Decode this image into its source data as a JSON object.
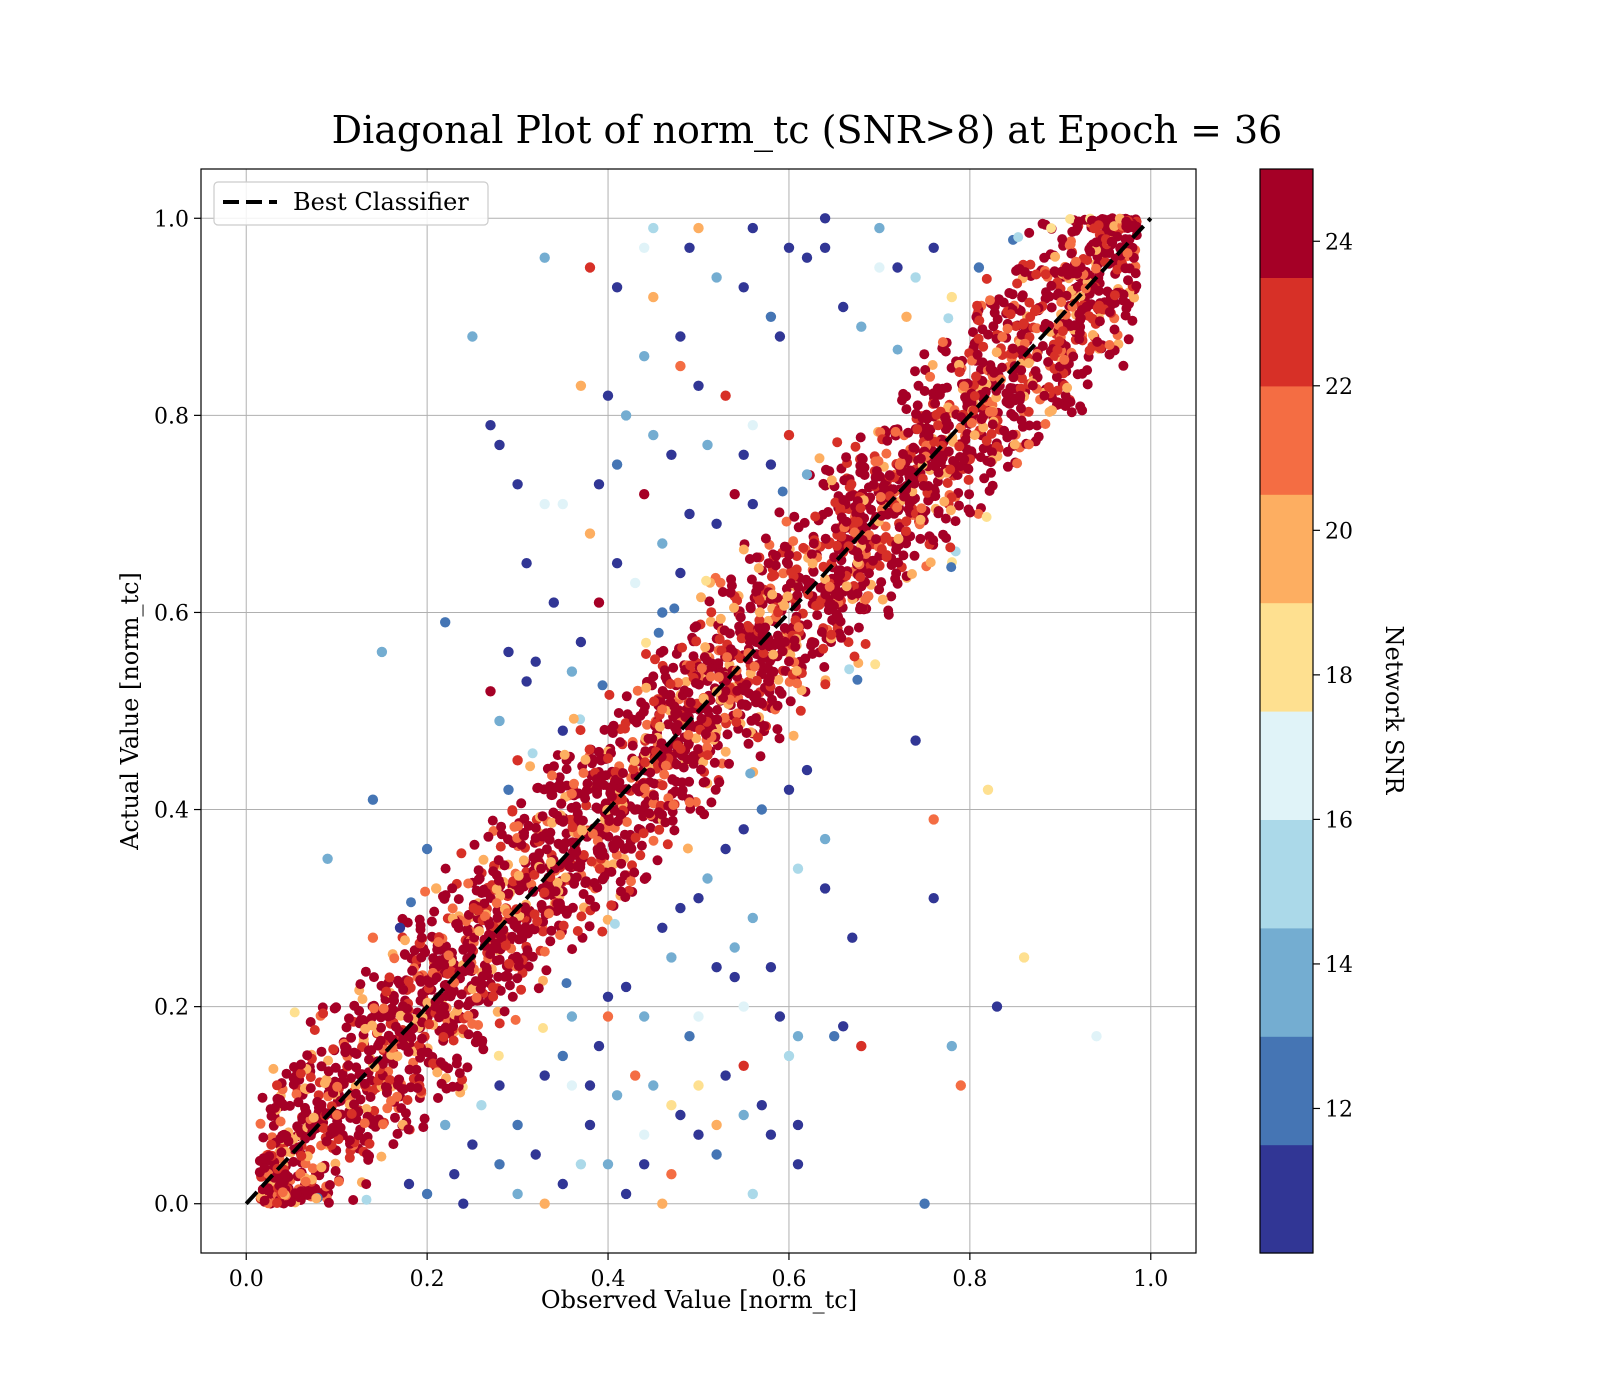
{
  "chart_data": {
    "type": "scatter",
    "title": "Diagonal Plot of norm_tc (SNR>8) at Epoch = 36",
    "xlabel": "Observed Value [norm_tc]",
    "ylabel": "Actual Value [norm_tc]",
    "xlim": [
      -0.05,
      1.05
    ],
    "ylim": [
      -0.05,
      1.05
    ],
    "x_ticks": [
      "0.0",
      "0.2",
      "0.4",
      "0.6",
      "0.8",
      "1.0"
    ],
    "y_ticks": [
      "0.0",
      "0.2",
      "0.4",
      "0.6",
      "0.8",
      "1.0"
    ],
    "grid": true,
    "legend": {
      "placement": "top-left",
      "entries": [
        {
          "label": "Best Classifier",
          "style": "black dashed line"
        }
      ]
    },
    "reference_line": {
      "label": "Best Classifier",
      "x": [
        0.0,
        1.0
      ],
      "y": [
        0.0,
        1.0
      ],
      "color": "#000000"
    },
    "colorbar": {
      "label": "Network SNR",
      "ticks": [
        "12",
        "14",
        "16",
        "18",
        "20",
        "22",
        "24"
      ],
      "tick_values": [
        12,
        14,
        16,
        18,
        20,
        22,
        24
      ],
      "range": [
        10,
        25
      ],
      "colors": [
        "#313695",
        "#4575b4",
        "#74add1",
        "#abd9e9",
        "#e0f3f8",
        "#fee090",
        "#fdae61",
        "#f46d43",
        "#d73027",
        "#a50026"
      ]
    },
    "points": [
      [
        0.45,
        0.99,
        15
      ],
      [
        0.5,
        0.99,
        19
      ],
      [
        0.56,
        0.99,
        11
      ],
      [
        0.64,
        1.0,
        10
      ],
      [
        0.55,
        0.93,
        10
      ],
      [
        0.58,
        0.9,
        12
      ],
      [
        0.33,
        0.96,
        13
      ],
      [
        0.38,
        0.95,
        22
      ],
      [
        0.44,
        0.97,
        17
      ],
      [
        0.49,
        0.97,
        10
      ],
      [
        0.52,
        0.94,
        14
      ],
      [
        0.59,
        0.88,
        10
      ],
      [
        0.25,
        0.88,
        13
      ],
      [
        0.41,
        0.93,
        10
      ],
      [
        0.45,
        0.92,
        20
      ],
      [
        0.48,
        0.88,
        10
      ],
      [
        0.53,
        0.82,
        22
      ],
      [
        0.6,
        0.97,
        11
      ],
      [
        0.64,
        0.97,
        10
      ],
      [
        0.66,
        0.91,
        11
      ],
      [
        0.7,
        0.99,
        13
      ],
      [
        0.72,
        0.95,
        11
      ],
      [
        0.74,
        0.94,
        15
      ],
      [
        0.76,
        0.97,
        10
      ],
      [
        0.81,
        0.95,
        12
      ],
      [
        0.44,
        0.86,
        13
      ],
      [
        0.48,
        0.85,
        21
      ],
      [
        0.5,
        0.83,
        10
      ],
      [
        0.37,
        0.83,
        19
      ],
      [
        0.4,
        0.82,
        11
      ],
      [
        0.42,
        0.8,
        13
      ],
      [
        0.27,
        0.79,
        10
      ],
      [
        0.28,
        0.77,
        10
      ],
      [
        0.3,
        0.73,
        10
      ],
      [
        0.33,
        0.71,
        16
      ],
      [
        0.35,
        0.71,
        17
      ],
      [
        0.39,
        0.73,
        10
      ],
      [
        0.41,
        0.75,
        12
      ],
      [
        0.45,
        0.78,
        13
      ],
      [
        0.47,
        0.76,
        10
      ],
      [
        0.44,
        0.72,
        24
      ],
      [
        0.49,
        0.7,
        10
      ],
      [
        0.51,
        0.77,
        14
      ],
      [
        0.55,
        0.76,
        10
      ],
      [
        0.54,
        0.72,
        24
      ],
      [
        0.56,
        0.79,
        16
      ],
      [
        0.58,
        0.75,
        10
      ],
      [
        0.6,
        0.78,
        22
      ],
      [
        0.62,
        0.74,
        14
      ],
      [
        0.38,
        0.68,
        20
      ],
      [
        0.41,
        0.65,
        10
      ],
      [
        0.43,
        0.63,
        16
      ],
      [
        0.31,
        0.65,
        10
      ],
      [
        0.34,
        0.61,
        11
      ],
      [
        0.37,
        0.57,
        10
      ],
      [
        0.39,
        0.61,
        24
      ],
      [
        0.22,
        0.59,
        12
      ],
      [
        0.15,
        0.56,
        14
      ],
      [
        0.29,
        0.56,
        10
      ],
      [
        0.31,
        0.53,
        11
      ],
      [
        0.27,
        0.52,
        24
      ],
      [
        0.28,
        0.49,
        13
      ],
      [
        0.3,
        0.45,
        22
      ],
      [
        0.29,
        0.42,
        12
      ],
      [
        0.35,
        0.48,
        10
      ],
      [
        0.32,
        0.55,
        11
      ],
      [
        0.36,
        0.54,
        13
      ],
      [
        0.14,
        0.41,
        12
      ],
      [
        0.09,
        0.35,
        14
      ],
      [
        0.2,
        0.36,
        12
      ],
      [
        0.21,
        0.32,
        20
      ],
      [
        0.17,
        0.28,
        10
      ],
      [
        0.14,
        0.27,
        21
      ],
      [
        0.62,
        0.44,
        11
      ],
      [
        0.6,
        0.42,
        10
      ],
      [
        0.57,
        0.4,
        12
      ],
      [
        0.55,
        0.38,
        10
      ],
      [
        0.53,
        0.36,
        11
      ],
      [
        0.51,
        0.33,
        13
      ],
      [
        0.5,
        0.31,
        10
      ],
      [
        0.48,
        0.3,
        11
      ],
      [
        0.46,
        0.28,
        10
      ],
      [
        0.47,
        0.25,
        14
      ],
      [
        0.52,
        0.24,
        10
      ],
      [
        0.54,
        0.26,
        13
      ],
      [
        0.56,
        0.29,
        14
      ],
      [
        0.58,
        0.24,
        10
      ],
      [
        0.61,
        0.34,
        15
      ],
      [
        0.64,
        0.32,
        10
      ],
      [
        0.64,
        0.37,
        13
      ],
      [
        0.67,
        0.27,
        10
      ],
      [
        0.74,
        0.47,
        10
      ],
      [
        0.82,
        0.42,
        18
      ],
      [
        0.76,
        0.39,
        21
      ],
      [
        0.76,
        0.31,
        10
      ],
      [
        0.86,
        0.25,
        18
      ],
      [
        0.83,
        0.2,
        10
      ],
      [
        0.78,
        0.16,
        13
      ],
      [
        0.79,
        0.12,
        21
      ],
      [
        0.68,
        0.16,
        22
      ],
      [
        0.66,
        0.18,
        10
      ],
      [
        0.65,
        0.17,
        12
      ],
      [
        0.61,
        0.17,
        13
      ],
      [
        0.6,
        0.15,
        15
      ],
      [
        0.59,
        0.19,
        10
      ],
      [
        0.55,
        0.2,
        16
      ],
      [
        0.54,
        0.23,
        10
      ],
      [
        0.5,
        0.19,
        17
      ],
      [
        0.49,
        0.17,
        12
      ],
      [
        0.44,
        0.19,
        13
      ],
      [
        0.42,
        0.22,
        10
      ],
      [
        0.4,
        0.21,
        11
      ],
      [
        0.4,
        0.19,
        21
      ],
      [
        0.39,
        0.16,
        10
      ],
      [
        0.36,
        0.19,
        13
      ],
      [
        0.35,
        0.15,
        12
      ],
      [
        0.33,
        0.13,
        10
      ],
      [
        0.38,
        0.12,
        10
      ],
      [
        0.41,
        0.11,
        14
      ],
      [
        0.43,
        0.13,
        21
      ],
      [
        0.45,
        0.12,
        13
      ],
      [
        0.48,
        0.09,
        10
      ],
      [
        0.5,
        0.07,
        11
      ],
      [
        0.52,
        0.05,
        12
      ],
      [
        0.52,
        0.08,
        19
      ],
      [
        0.55,
        0.09,
        14
      ],
      [
        0.57,
        0.1,
        10
      ],
      [
        0.58,
        0.07,
        11
      ],
      [
        0.61,
        0.08,
        10
      ],
      [
        0.53,
        0.13,
        10
      ],
      [
        0.55,
        0.14,
        22
      ],
      [
        0.47,
        0.03,
        21
      ],
      [
        0.44,
        0.04,
        10
      ],
      [
        0.4,
        0.04,
        13
      ],
      [
        0.37,
        0.04,
        15
      ],
      [
        0.35,
        0.02,
        10
      ],
      [
        0.33,
        0.0,
        19
      ],
      [
        0.3,
        0.01,
        13
      ],
      [
        0.28,
        0.04,
        12
      ],
      [
        0.25,
        0.06,
        10
      ],
      [
        0.23,
        0.03,
        11
      ],
      [
        0.22,
        0.08,
        13
      ],
      [
        0.26,
        0.1,
        15
      ],
      [
        0.28,
        0.12,
        10
      ],
      [
        0.3,
        0.08,
        12
      ],
      [
        0.32,
        0.05,
        10
      ],
      [
        0.18,
        0.02,
        10
      ],
      [
        0.2,
        0.01,
        12
      ],
      [
        0.24,
        0.0,
        10
      ],
      [
        0.42,
        0.01,
        10
      ],
      [
        0.46,
        0.0,
        19
      ],
      [
        0.56,
        0.01,
        15
      ],
      [
        0.61,
        0.04,
        10
      ],
      [
        0.75,
        0.0,
        12
      ],
      [
        0.94,
        0.17,
        16
      ],
      [
        0.47,
        0.1,
        18
      ],
      [
        0.5,
        0.12,
        18
      ],
      [
        0.44,
        0.07,
        17
      ],
      [
        0.38,
        0.08,
        11
      ],
      [
        0.36,
        0.12,
        17
      ],
      [
        0.62,
        0.96,
        11
      ],
      [
        0.68,
        0.89,
        13
      ],
      [
        0.7,
        0.95,
        16
      ],
      [
        0.73,
        0.9,
        20
      ],
      [
        0.78,
        0.92,
        18
      ],
      [
        0.46,
        0.67,
        13
      ],
      [
        0.48,
        0.64,
        10
      ],
      [
        0.52,
        0.69,
        11
      ],
      [
        0.56,
        0.71,
        10
      ],
      [
        0.46,
        0.6,
        12
      ]
    ]
  }
}
